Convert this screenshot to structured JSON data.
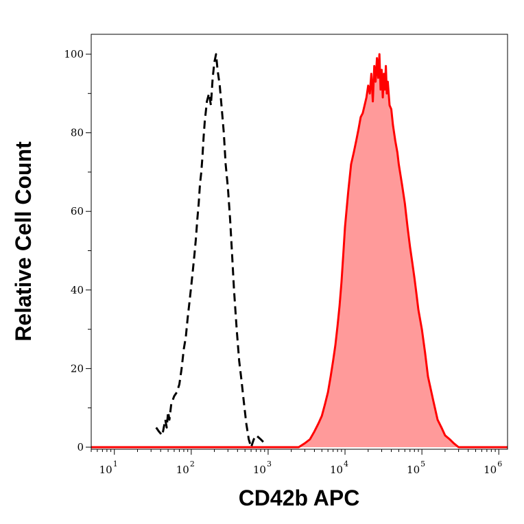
{
  "chart_data": {
    "type": "area",
    "title": "",
    "xlabel": "CD42b APC",
    "ylabel": "Relative Cell Count",
    "x_scale": "log",
    "xlim": [
      5,
      1300000
    ],
    "ylim": [
      0,
      100
    ],
    "x_ticks": [
      {
        "base": "10",
        "exp": "1",
        "value": 10
      },
      {
        "base": "10",
        "exp": "2",
        "value": 100
      },
      {
        "base": "10",
        "exp": "3",
        "value": 1000
      },
      {
        "base": "10",
        "exp": "4",
        "value": 10000
      },
      {
        "base": "10",
        "exp": "5",
        "value": 100000
      },
      {
        "base": "10",
        "exp": "6",
        "value": 1000000
      }
    ],
    "y_ticks": [
      {
        "label": "0",
        "value": 0
      },
      {
        "label": "20",
        "value": 20
      },
      {
        "label": "40",
        "value": 40
      },
      {
        "label": "60",
        "value": 60
      },
      {
        "label": "80",
        "value": 80
      },
      {
        "label": "100",
        "value": 100
      }
    ],
    "grid": false,
    "series": [
      {
        "style": "dashed",
        "color": "#000000",
        "fill": "none",
        "points": [
          [
            35,
            5
          ],
          [
            38,
            4
          ],
          [
            42,
            3
          ],
          [
            46,
            7
          ],
          [
            48,
            5
          ],
          [
            50,
            9
          ],
          [
            52,
            7
          ],
          [
            55,
            11
          ],
          [
            60,
            13
          ],
          [
            65,
            14
          ],
          [
            70,
            16
          ],
          [
            75,
            20
          ],
          [
            80,
            25
          ],
          [
            85,
            28
          ],
          [
            90,
            33
          ],
          [
            95,
            37
          ],
          [
            100,
            41
          ],
          [
            105,
            45
          ],
          [
            110,
            49
          ],
          [
            115,
            53
          ],
          [
            120,
            58
          ],
          [
            125,
            62
          ],
          [
            130,
            67
          ],
          [
            135,
            70
          ],
          [
            140,
            74
          ],
          [
            145,
            79
          ],
          [
            150,
            83
          ],
          [
            160,
            88
          ],
          [
            170,
            90
          ],
          [
            180,
            87
          ],
          [
            190,
            94
          ],
          [
            200,
            98
          ],
          [
            210,
            100
          ],
          [
            220,
            96
          ],
          [
            235,
            92
          ],
          [
            250,
            86
          ],
          [
            265,
            80
          ],
          [
            280,
            72
          ],
          [
            300,
            66
          ],
          [
            320,
            58
          ],
          [
            340,
            49
          ],
          [
            360,
            40
          ],
          [
            390,
            30
          ],
          [
            420,
            22
          ],
          [
            450,
            17
          ],
          [
            480,
            12
          ],
          [
            520,
            6
          ],
          [
            560,
            2
          ],
          [
            600,
            0
          ],
          [
            650,
            2
          ],
          [
            700,
            3
          ],
          [
            800,
            2
          ],
          [
            900,
            1
          ]
        ]
      },
      {
        "style": "solid",
        "color": "#ff0000",
        "fill": "#ff9a9a",
        "points": [
          [
            5,
            0
          ],
          [
            1500,
            0
          ],
          [
            2500,
            0
          ],
          [
            3000,
            1
          ],
          [
            3500,
            2
          ],
          [
            4000,
            4
          ],
          [
            4500,
            6
          ],
          [
            5000,
            8
          ],
          [
            5500,
            11
          ],
          [
            6000,
            14
          ],
          [
            6500,
            18
          ],
          [
            7000,
            22
          ],
          [
            7500,
            26
          ],
          [
            8000,
            31
          ],
          [
            8500,
            36
          ],
          [
            9000,
            42
          ],
          [
            9500,
            49
          ],
          [
            10000,
            56
          ],
          [
            11000,
            65
          ],
          [
            12000,
            72
          ],
          [
            13000,
            75
          ],
          [
            14000,
            78
          ],
          [
            15000,
            81
          ],
          [
            16000,
            84
          ],
          [
            17000,
            85
          ],
          [
            18000,
            87
          ],
          [
            19000,
            89
          ],
          [
            20000,
            92
          ],
          [
            21000,
            90
          ],
          [
            22000,
            95
          ],
          [
            23000,
            88
          ],
          [
            24000,
            97
          ],
          [
            25000,
            93
          ],
          [
            26000,
            99
          ],
          [
            27000,
            94
          ],
          [
            28000,
            100
          ],
          [
            29000,
            91
          ],
          [
            30000,
            96
          ],
          [
            31000,
            89
          ],
          [
            32000,
            95
          ],
          [
            33000,
            91
          ],
          [
            34000,
            97
          ],
          [
            35000,
            90
          ],
          [
            36000,
            93
          ],
          [
            38000,
            87
          ],
          [
            40000,
            86
          ],
          [
            42000,
            82
          ],
          [
            45000,
            78
          ],
          [
            48000,
            75
          ],
          [
            50000,
            72
          ],
          [
            55000,
            67
          ],
          [
            60000,
            62
          ],
          [
            65000,
            56
          ],
          [
            70000,
            51
          ],
          [
            75000,
            47
          ],
          [
            80000,
            43
          ],
          [
            85000,
            39
          ],
          [
            90000,
            35
          ],
          [
            100000,
            30
          ],
          [
            110000,
            24
          ],
          [
            120000,
            18
          ],
          [
            140000,
            12
          ],
          [
            160000,
            7
          ],
          [
            180000,
            5
          ],
          [
            200000,
            3
          ],
          [
            230000,
            2
          ],
          [
            260000,
            1
          ],
          [
            300000,
            0
          ],
          [
            1300000,
            0
          ]
        ]
      }
    ],
    "legend": "none"
  }
}
